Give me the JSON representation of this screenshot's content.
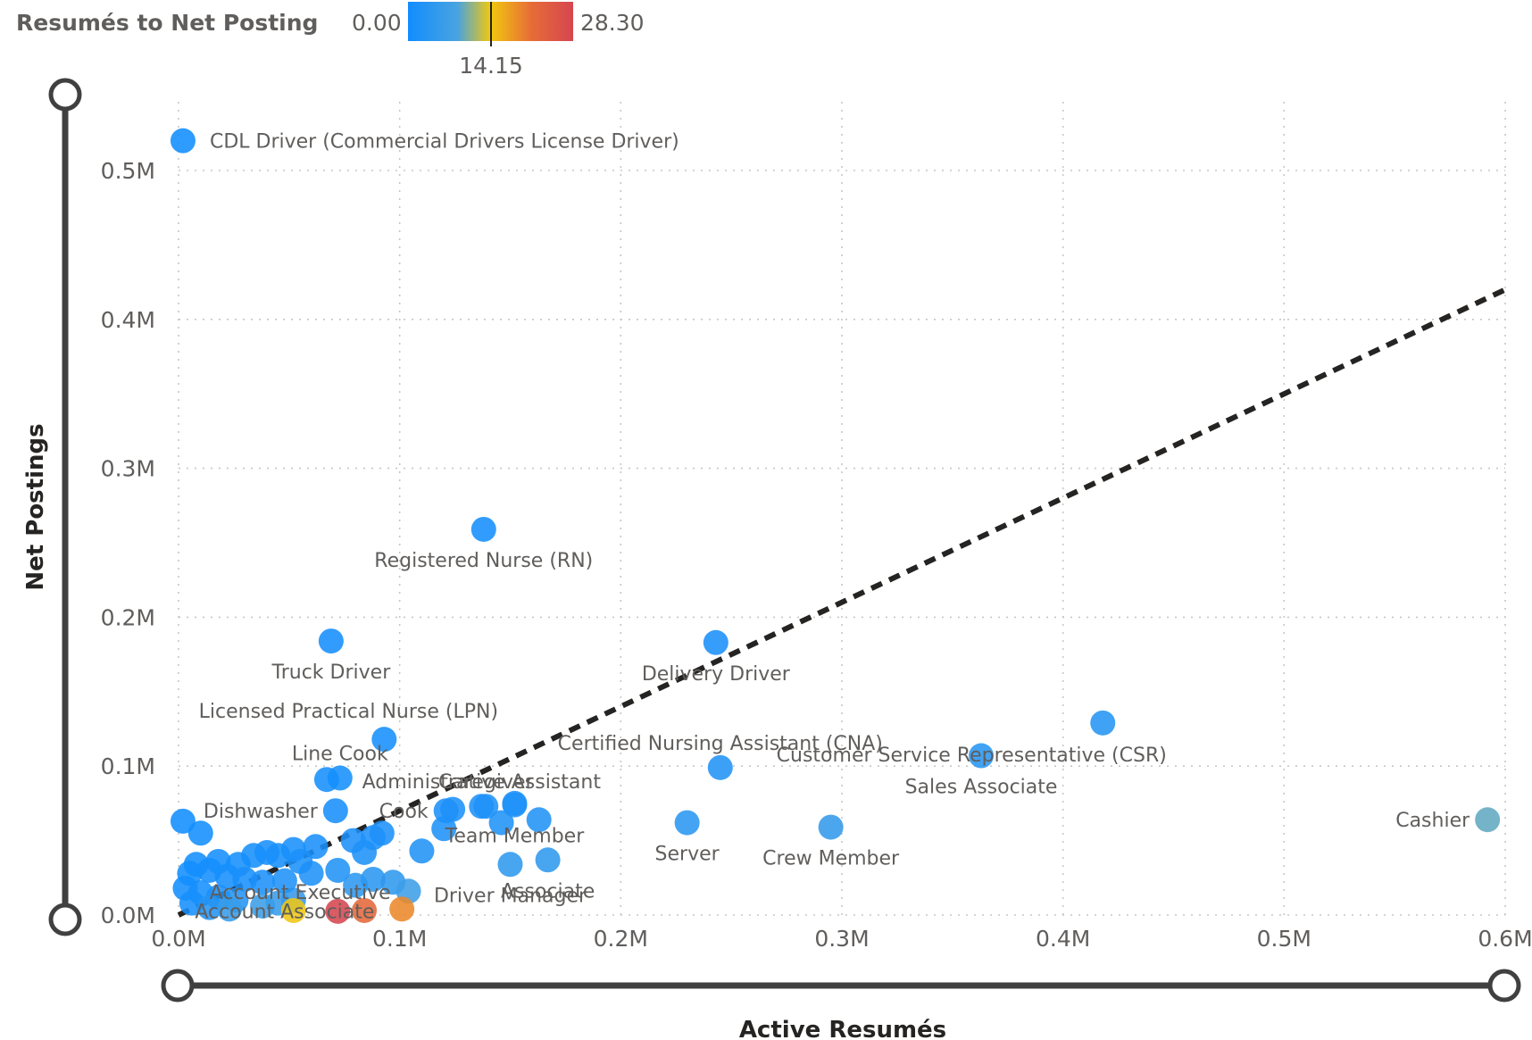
{
  "legend": {
    "title": "Resumés to Net Posting",
    "min_label": "0.00",
    "mid_label": "14.15",
    "max_label": "28.30",
    "min": 0,
    "mid": 14.15,
    "max": 28.3,
    "colors": [
      "#118dff",
      "#4aa3df",
      "#f2c80f",
      "#e66c37",
      "#d64550"
    ]
  },
  "chart_data": {
    "type": "scatter",
    "xlabel": "Active Resumés",
    "ylabel": "Net Postings",
    "xlim": [
      0,
      600000
    ],
    "ylim": [
      0,
      500000
    ],
    "x_ticks": [
      "0.0M",
      "0.1M",
      "0.2M",
      "0.3M",
      "0.4M",
      "0.5M",
      "0.6M"
    ],
    "y_ticks": [
      "0.0M",
      "0.1M",
      "0.2M",
      "0.3M",
      "0.4M",
      "0.5M"
    ],
    "grid": true,
    "trendline": {
      "x": [
        0,
        600000
      ],
      "y": [
        0,
        420000
      ]
    },
    "labeled_points": [
      {
        "label": "CDL Driver (Commercial Drivers License Driver)",
        "x": 2000,
        "y": 520000,
        "ratio": 0.0,
        "label_pos": "right"
      },
      {
        "label": "Registered Nurse (RN)",
        "x": 138000,
        "y": 259000,
        "ratio": 0.5,
        "label_pos": "below"
      },
      {
        "label": "Truck Driver",
        "x": 69000,
        "y": 184000,
        "ratio": 0.4,
        "label_pos": "below"
      },
      {
        "label": "Delivery Driver",
        "x": 243000,
        "y": 183000,
        "ratio": 1.3,
        "label_pos": "below"
      },
      {
        "label": "Licensed Practical Nurse (LPN)",
        "x": 93000,
        "y": 118000,
        "ratio": 0.8,
        "label_pos": "above-left"
      },
      {
        "label": "Line Cook",
        "x": 73000,
        "y": 92000,
        "ratio": 0.8,
        "label_pos": "above"
      },
      {
        "label": "Caregiver",
        "x": 139000,
        "y": 73000,
        "ratio": 1.9,
        "label_pos": "above"
      },
      {
        "label": "Certified Nursing Assistant (CNA)",
        "x": 245000,
        "y": 99000,
        "ratio": 2.5,
        "label_pos": "above"
      },
      {
        "label": "Customer Service Representative (CSR)",
        "x": 418000,
        "y": 129000,
        "ratio": 3.2,
        "label_pos": "below-left"
      },
      {
        "label": "Sales Associate",
        "x": 363000,
        "y": 107000,
        "ratio": 3.4,
        "label_pos": "below"
      },
      {
        "label": "Administrative Assistant",
        "x": 137000,
        "y": 73000,
        "ratio": 1.9,
        "label_pos": "above"
      },
      {
        "label": "Dishwasher",
        "x": 71000,
        "y": 70000,
        "ratio": 1.0,
        "label_pos": "left"
      },
      {
        "label": "Cook",
        "x": 121000,
        "y": 70000,
        "ratio": 1.7,
        "label_pos": "left"
      },
      {
        "label": "Team Member",
        "x": 152000,
        "y": 74000,
        "ratio": 2.1,
        "label_pos": "below"
      },
      {
        "label": "Driver Manager",
        "x": 150000,
        "y": 34000,
        "ratio": 4.4,
        "label_pos": "below"
      },
      {
        "label": "Associate",
        "x": 167000,
        "y": 37000,
        "ratio": 4.5,
        "label_pos": "below"
      },
      {
        "label": "Server",
        "x": 230000,
        "y": 62000,
        "ratio": 3.7,
        "label_pos": "below"
      },
      {
        "label": "Crew Member",
        "x": 295000,
        "y": 59000,
        "ratio": 5.0,
        "label_pos": "below"
      },
      {
        "label": "Cashier",
        "x": 592000,
        "y": 64000,
        "ratio": 9.3,
        "label_pos": "left"
      },
      {
        "label": "Account Executive",
        "x": 55000,
        "y": 36000,
        "ratio": 1.5,
        "label_pos": "below"
      },
      {
        "label": "Account Associate",
        "x": 48000,
        "y": 23000,
        "ratio": 2.1,
        "label_pos": "below"
      }
    ],
    "unlabeled_points": [
      {
        "x": 2000,
        "y": 63000,
        "ratio": 0.0
      },
      {
        "x": 10000,
        "y": 55000,
        "ratio": 0.2
      },
      {
        "x": 67000,
        "y": 91000,
        "ratio": 0.7
      },
      {
        "x": 120000,
        "y": 58000,
        "ratio": 2.0
      },
      {
        "x": 124000,
        "y": 71000,
        "ratio": 1.7
      },
      {
        "x": 146000,
        "y": 62000,
        "ratio": 2.3
      },
      {
        "x": 163000,
        "y": 64000,
        "ratio": 2.5
      },
      {
        "x": 152000,
        "y": 75000,
        "ratio": 2.0
      },
      {
        "x": 110000,
        "y": 43000,
        "ratio": 2.5
      },
      {
        "x": 88000,
        "y": 52000,
        "ratio": 1.7
      },
      {
        "x": 79000,
        "y": 50000,
        "ratio": 1.6
      },
      {
        "x": 92000,
        "y": 55000,
        "ratio": 1.7
      },
      {
        "x": 84000,
        "y": 42000,
        "ratio": 2.0
      },
      {
        "x": 62000,
        "y": 46000,
        "ratio": 1.3
      },
      {
        "x": 52000,
        "y": 44000,
        "ratio": 1.2
      },
      {
        "x": 45000,
        "y": 40000,
        "ratio": 1.1
      },
      {
        "x": 40000,
        "y": 42000,
        "ratio": 1.0
      },
      {
        "x": 34000,
        "y": 40000,
        "ratio": 0.9
      },
      {
        "x": 27000,
        "y": 34000,
        "ratio": 0.8
      },
      {
        "x": 18000,
        "y": 36000,
        "ratio": 0.5
      },
      {
        "x": 8000,
        "y": 34000,
        "ratio": 0.2
      },
      {
        "x": 5000,
        "y": 28000,
        "ratio": 0.2
      },
      {
        "x": 14000,
        "y": 30000,
        "ratio": 0.5
      },
      {
        "x": 22000,
        "y": 26000,
        "ratio": 0.8
      },
      {
        "x": 30000,
        "y": 24000,
        "ratio": 1.2
      },
      {
        "x": 38000,
        "y": 22000,
        "ratio": 1.7
      },
      {
        "x": 3000,
        "y": 18000,
        "ratio": 0.2
      },
      {
        "x": 10000,
        "y": 15000,
        "ratio": 0.7
      },
      {
        "x": 18000,
        "y": 12000,
        "ratio": 1.5
      },
      {
        "x": 26000,
        "y": 10000,
        "ratio": 2.6
      },
      {
        "x": 6000,
        "y": 8000,
        "ratio": 0.7
      },
      {
        "x": 14000,
        "y": 5000,
        "ratio": 2.8
      },
      {
        "x": 60000,
        "y": 28000,
        "ratio": 2.1
      },
      {
        "x": 72000,
        "y": 30000,
        "ratio": 2.4
      },
      {
        "x": 80000,
        "y": 20000,
        "ratio": 4.0
      },
      {
        "x": 88000,
        "y": 24000,
        "ratio": 3.7
      },
      {
        "x": 97000,
        "y": 22000,
        "ratio": 4.4
      },
      {
        "x": 104000,
        "y": 16000,
        "ratio": 6.5
      },
      {
        "x": 23000,
        "y": 4000,
        "ratio": 5.8
      },
      {
        "x": 38000,
        "y": 6000,
        "ratio": 6.3
      },
      {
        "x": 45000,
        "y": 8000,
        "ratio": 5.6
      },
      {
        "x": 52000,
        "y": 10000,
        "ratio": 5.2
      },
      {
        "x": 52000,
        "y": 3000,
        "ratio": 14.0
      },
      {
        "x": 72000,
        "y": 2500,
        "ratio": 28.3
      },
      {
        "x": 84000,
        "y": 3000,
        "ratio": 22.0
      },
      {
        "x": 101000,
        "y": 4000,
        "ratio": 19.0
      }
    ]
  }
}
